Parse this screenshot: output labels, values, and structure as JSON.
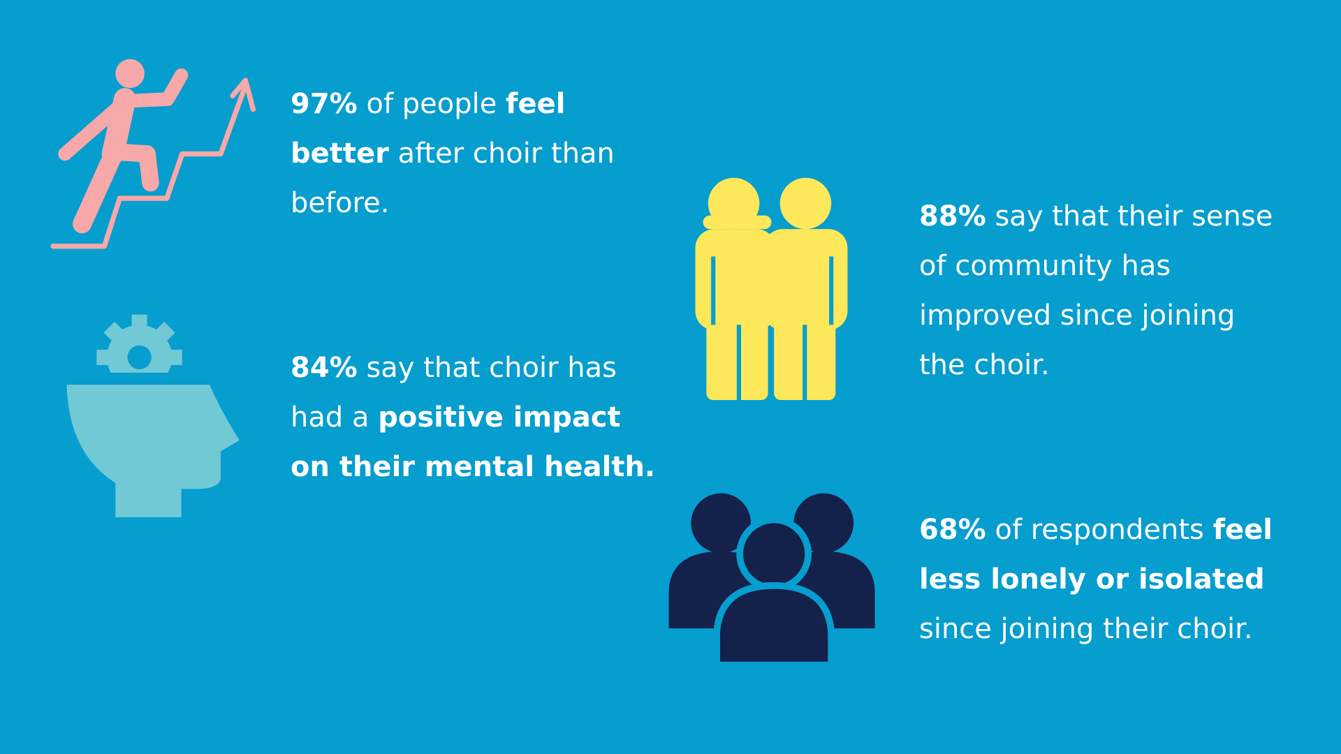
{
  "stats": [
    {
      "lines": [
        [
          {
            "text": "97%",
            "bold": true
          },
          {
            "text": " of people ",
            "bold": false
          },
          {
            "text": "feel",
            "bold": true
          }
        ],
        [
          {
            "text": "better",
            "bold": true
          },
          {
            "text": " after choir than",
            "bold": false
          }
        ],
        [
          {
            "text": "before.",
            "bold": false
          }
        ]
      ]
    },
    {
      "lines": [
        [
          {
            "text": "84%",
            "bold": true
          },
          {
            "text": " say that choir has",
            "bold": false
          }
        ],
        [
          {
            "text": "had a ",
            "bold": false
          },
          {
            "text": "positive impact",
            "bold": true
          }
        ],
        [
          {
            "text": "on their mental health.",
            "bold": true
          }
        ]
      ]
    },
    {
      "lines": [
        [
          {
            "text": "88%",
            "bold": true
          },
          {
            "text": " say that their sense",
            "bold": false
          }
        ],
        [
          {
            "text": "of community has",
            "bold": false
          }
        ],
        [
          {
            "text": "improved since joining",
            "bold": false
          }
        ],
        [
          {
            "text": "the choir.",
            "bold": false
          }
        ]
      ]
    },
    {
      "lines": [
        [
          {
            "text": "68%",
            "bold": true
          },
          {
            "text": " of respondents ",
            "bold": false
          },
          {
            "text": "feel",
            "bold": true
          }
        ],
        [
          {
            "text": "less lonely or isolated",
            "bold": true
          }
        ],
        [
          {
            "text": "since joining their choir.",
            "bold": false
          }
        ]
      ]
    }
  ]
}
